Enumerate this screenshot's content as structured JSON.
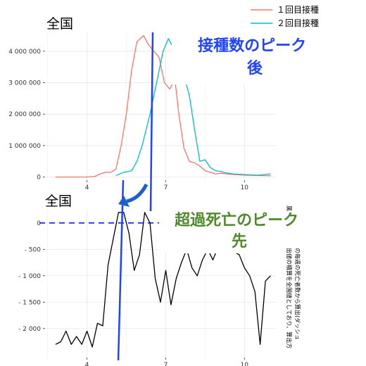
{
  "chart_data": [
    {
      "type": "line",
      "title": "全国",
      "x_ticks": [
        4,
        7,
        10
      ],
      "y_ticks": [
        0,
        1000000,
        2000000,
        3000000,
        4000000
      ],
      "y_tick_labels": [
        "0",
        "1 000 000",
        "2 000 000",
        "3 000 000",
        "4 000 000"
      ],
      "xlim": [
        2.4,
        11.2
      ],
      "ylim": [
        -100000,
        4600000
      ],
      "grid": true,
      "legend_position": "top-right",
      "series": [
        {
          "name": "１回目接種",
          "color": "#F8766D",
          "points": [
            [
              2.8,
              0
            ],
            [
              3.5,
              0
            ],
            [
              4.0,
              0
            ],
            [
              4.3,
              20000
            ],
            [
              4.5,
              100000
            ],
            [
              4.7,
              150000
            ],
            [
              4.9,
              150000
            ],
            [
              5.1,
              250000
            ],
            [
              5.3,
              1000000
            ],
            [
              5.5,
              2000000
            ],
            [
              5.7,
              3400000
            ],
            [
              5.9,
              4300000
            ],
            [
              6.15,
              4500000
            ],
            [
              6.35,
              4200000
            ],
            [
              6.55,
              4000000
            ],
            [
              6.75,
              3800000
            ],
            [
              6.95,
              3000000
            ],
            [
              7.15,
              2800000
            ],
            [
              7.35,
              3100000
            ],
            [
              7.5,
              2000000
            ],
            [
              7.7,
              900000
            ],
            [
              7.9,
              500000
            ],
            [
              8.1,
              450000
            ],
            [
              8.3,
              350000
            ],
            [
              8.5,
              200000
            ],
            [
              8.7,
              150000
            ],
            [
              8.9,
              100000
            ],
            [
              9.1,
              120000
            ],
            [
              9.3,
              100000
            ],
            [
              9.6,
              80000
            ],
            [
              10.0,
              60000
            ],
            [
              10.5,
              50000
            ],
            [
              11.0,
              40000
            ]
          ]
        },
        {
          "name": "２回目接種",
          "color": "#00BFC4",
          "points": [
            [
              5.1,
              50000
            ],
            [
              5.4,
              150000
            ],
            [
              5.7,
              200000
            ],
            [
              5.9,
              500000
            ],
            [
              6.1,
              1000000
            ],
            [
              6.4,
              2000000
            ],
            [
              6.7,
              3200000
            ],
            [
              6.9,
              4000000
            ],
            [
              7.1,
              4400000
            ],
            [
              7.3,
              4100000
            ],
            [
              7.5,
              3800000
            ],
            [
              7.7,
              3200000
            ],
            [
              7.9,
              2600000
            ],
            [
              8.1,
              1500000
            ],
            [
              8.3,
              500000
            ],
            [
              8.5,
              550000
            ],
            [
              8.7,
              300000
            ],
            [
              8.9,
              200000
            ],
            [
              9.1,
              180000
            ],
            [
              9.3,
              130000
            ],
            [
              9.6,
              100000
            ],
            [
              10.0,
              80000
            ],
            [
              10.5,
              60000
            ],
            [
              11.0,
              100000
            ]
          ]
        }
      ]
    },
    {
      "type": "line",
      "title": "全国",
      "x_ticks": [
        4,
        7,
        10
      ],
      "y_ticks": [
        -2000,
        -1500,
        -1000,
        -500,
        0
      ],
      "y_tick_labels": [
        "- 2 000",
        "- 1 500",
        "- 1 000",
        "- 500",
        "0"
      ],
      "xlim": [
        2.4,
        11.2
      ],
      "ylim": [
        -2550,
        250
      ],
      "grid": true,
      "reference_line": 0,
      "series": [
        {
          "color": "#000000",
          "points": [
            [
              2.8,
              -2300
            ],
            [
              3.0,
              -2250
            ],
            [
              3.2,
              -2050
            ],
            [
              3.4,
              -2300
            ],
            [
              3.6,
              -2150
            ],
            [
              3.8,
              -2300
            ],
            [
              4.0,
              -2050
            ],
            [
              4.2,
              -2350
            ],
            [
              4.4,
              -1900
            ],
            [
              4.6,
              -1950
            ],
            [
              4.8,
              -800
            ],
            [
              5.0,
              -300
            ],
            [
              5.2,
              200
            ],
            [
              5.4,
              200
            ],
            [
              5.6,
              -200
            ],
            [
              5.8,
              -900
            ],
            [
              6.0,
              -600
            ],
            [
              6.2,
              200
            ],
            [
              6.4,
              0
            ],
            [
              6.6,
              -1050
            ],
            [
              6.8,
              -1500
            ],
            [
              7.0,
              -900
            ],
            [
              7.2,
              -1550
            ],
            [
              7.4,
              -1050
            ],
            [
              7.6,
              -750
            ],
            [
              7.8,
              -500
            ],
            [
              8.0,
              -850
            ],
            [
              8.2,
              -1000
            ],
            [
              8.4,
              -700
            ],
            [
              8.6,
              -500
            ],
            [
              8.8,
              -700
            ],
            [
              9.0,
              -450
            ],
            [
              9.2,
              -500
            ],
            [
              9.4,
              -300
            ],
            [
              9.6,
              -550
            ],
            [
              9.8,
              -600
            ],
            [
              10.0,
              -850
            ],
            [
              10.2,
              -1000
            ],
            [
              10.4,
              -1300
            ],
            [
              10.6,
              -2300
            ],
            [
              10.8,
              -1100
            ],
            [
              11.0,
              -1000
            ]
          ]
        }
      ]
    }
  ],
  "annotations": {
    "vaccine_peak_after": "接種数のピーク\n後",
    "excess_death_peak_before": "超過死亡のピーク\n先",
    "side_note": "属の毎週の死亡者数から算出(ダッシュ\n出値の積算を全国値としており、算出方"
  },
  "colors": {
    "first_dose": "#F8766D",
    "second_dose": "#00BFC4",
    "excess_line": "#000000",
    "vertical_markers": "#1f44ff",
    "dashed_zero": "#0000ff",
    "label_blue": "#1f44ff",
    "label_green": "#4e8a2a",
    "arrow": "#1e5fd0"
  }
}
